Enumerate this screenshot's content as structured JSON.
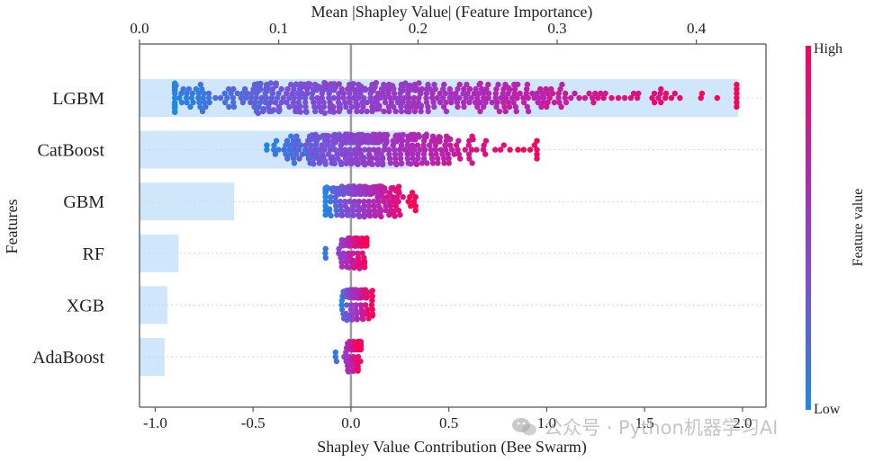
{
  "chart_data": {
    "type": "beeswarm+bar",
    "title": "",
    "top_axis": {
      "label": "Mean |Shapley Value| (Feature Importance)",
      "range": [
        0.0,
        0.45
      ],
      "ticks": [
        0.0,
        0.1,
        0.2,
        0.3,
        0.4
      ],
      "tick_labels": [
        "0.0",
        "0.1",
        "0.2",
        "0.3",
        "0.4"
      ]
    },
    "bottom_axis": {
      "label": "Shapley Value Contribution (Bee Swarm)",
      "range": [
        -1.08,
        2.12
      ],
      "ticks": [
        -1.0,
        -0.5,
        0.0,
        0.5,
        1.0,
        1.5,
        2.0
      ],
      "tick_labels": [
        "-1.0",
        "-0.5",
        "0.0",
        "0.5",
        "1.0",
        "1.5",
        "2.0"
      ]
    },
    "y_axis": {
      "label": "Features"
    },
    "features": [
      {
        "name": "LGBM",
        "importance": 0.43,
        "swarm_min": -0.9,
        "swarm_max": 1.97,
        "center": -0.05,
        "spread": 0.55,
        "count": 520
      },
      {
        "name": "CatBoost",
        "importance": 0.193,
        "swarm_min": -0.43,
        "swarm_max": 0.95,
        "center": 0.03,
        "spread": 0.22,
        "count": 430
      },
      {
        "name": "GBM",
        "importance": 0.068,
        "swarm_min": -0.13,
        "swarm_max": 0.33,
        "center": 0.03,
        "spread": 0.09,
        "count": 300
      },
      {
        "name": "RF",
        "importance": 0.028,
        "swarm_min": -0.14,
        "swarm_max": 0.08,
        "center": 0.02,
        "spread": 0.04,
        "count": 220
      },
      {
        "name": "XGB",
        "importance": 0.02,
        "swarm_min": -0.05,
        "swarm_max": 0.11,
        "center": 0.02,
        "spread": 0.03,
        "count": 200
      },
      {
        "name": "AdaBoost",
        "importance": 0.018,
        "swarm_min": -0.08,
        "swarm_max": 0.05,
        "center": 0.01,
        "spread": 0.02,
        "count": 200
      }
    ],
    "colorbar": {
      "label": "Feature value",
      "high_label": "High",
      "low_label": "Low",
      "colors": [
        "#1e88e5",
        "#7b4fd6",
        "#b326b3",
        "#ff0052"
      ]
    },
    "zero_line": 0.0
  },
  "watermark": {
    "text": "公众号 · Python机器学习AI",
    "icon": "wechat-icon"
  }
}
